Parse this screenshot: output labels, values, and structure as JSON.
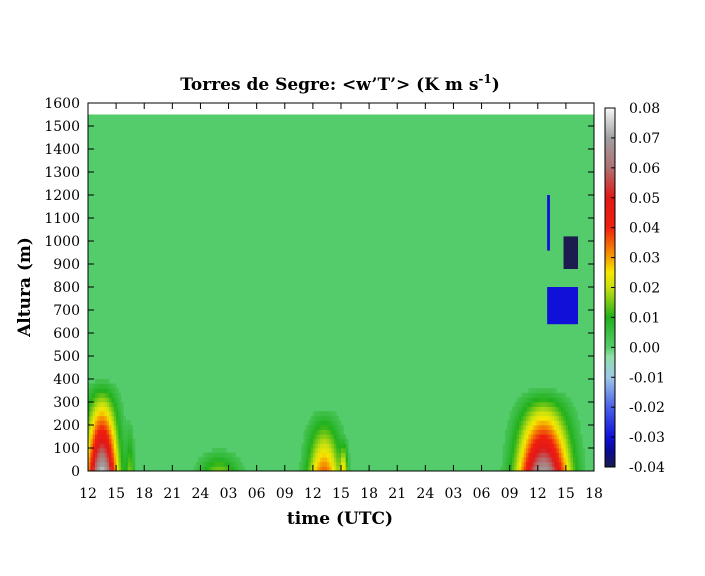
{
  "chart_data": {
    "type": "heatmap",
    "title": "Torres de Segre: <w’T’> (K m s",
    "title_superscript": "-1",
    "title_suffix": ")",
    "xlabel": "time (UTC)",
    "ylabel": "Altura (m)",
    "x_tick_labels": [
      "12",
      "15",
      "18",
      "21",
      "24",
      "03",
      "06",
      "09",
      "12",
      "15",
      "18",
      "21",
      "24",
      "03",
      "06",
      "09",
      "12",
      "15",
      "18"
    ],
    "x_range_hours": [
      0,
      54
    ],
    "y_ticks": [
      0,
      100,
      200,
      300,
      400,
      500,
      600,
      700,
      800,
      900,
      1000,
      1100,
      1200,
      1300,
      1400,
      1500,
      1600
    ],
    "ylim": [
      0,
      1600
    ],
    "data_top_height": 1550,
    "colorbar": {
      "range": [
        -0.04,
        0.08
      ],
      "ticks": [
        "0.08",
        "0.07",
        "0.06",
        "0.05",
        "0.04",
        "0.03",
        "0.02",
        "0.01",
        "0.00",
        "-0.01",
        "-0.02",
        "-0.03",
        "-0.04"
      ],
      "stops": [
        {
          "v": -0.04,
          "color": "#1c1c4e"
        },
        {
          "v": -0.035,
          "color": "#0a0a90"
        },
        {
          "v": -0.03,
          "color": "#1010d8"
        },
        {
          "v": -0.02,
          "color": "#4a60e8"
        },
        {
          "v": -0.01,
          "color": "#9ec8e8"
        },
        {
          "v": -0.003,
          "color": "#8fe0a8"
        },
        {
          "v": 0.0,
          "color": "#55cc6b"
        },
        {
          "v": 0.01,
          "color": "#21b01c"
        },
        {
          "v": 0.02,
          "color": "#c8e010"
        },
        {
          "v": 0.025,
          "color": "#f5e800"
        },
        {
          "v": 0.03,
          "color": "#f5a000"
        },
        {
          "v": 0.04,
          "color": "#f02010"
        },
        {
          "v": 0.05,
          "color": "#e01818"
        },
        {
          "v": 0.06,
          "color": "#b07070"
        },
        {
          "v": 0.07,
          "color": "#a0a0a0"
        },
        {
          "v": 0.08,
          "color": "#f8f8f8"
        }
      ]
    },
    "features": [
      {
        "kind": "plume",
        "t_center": 1.5,
        "t_width": 2.2,
        "h_top": 420,
        "peak": 0.075
      },
      {
        "kind": "plume",
        "t_center": 4.5,
        "t_width": 0.6,
        "h_top": 260,
        "peak": 0.014
      },
      {
        "kind": "plume",
        "t_center": 14.0,
        "t_width": 3.0,
        "h_top": 120,
        "peak": 0.016
      },
      {
        "kind": "plume",
        "t_center": 25.2,
        "t_width": 2.4,
        "h_top": 300,
        "peak": 0.035
      },
      {
        "kind": "plume",
        "t_center": 27.3,
        "t_width": 0.5,
        "h_top": 160,
        "peak": 0.022
      },
      {
        "kind": "plume",
        "t_center": 48.6,
        "t_width": 3.6,
        "h_top": 380,
        "peak": 0.07
      },
      {
        "kind": "patch",
        "t0": 49.0,
        "t1": 52.2,
        "h0": 640,
        "h1": 800,
        "value": -0.03
      },
      {
        "kind": "patch",
        "t0": 50.7,
        "t1": 52.2,
        "h0": 880,
        "h1": 1020,
        "value": -0.04
      },
      {
        "kind": "patch",
        "t0": 48.9,
        "t1": 49.2,
        "h0": 960,
        "h1": 1200,
        "value": -0.03
      }
    ]
  }
}
